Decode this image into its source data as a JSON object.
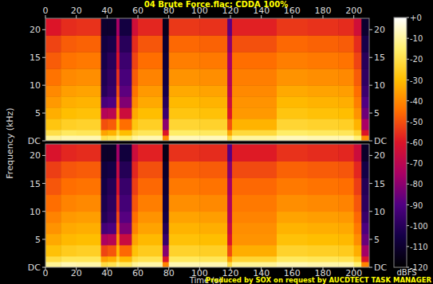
{
  "chart_data": {
    "type": "heatmap",
    "title": "04 Brute Force.flac: CDDA 100%",
    "x_label": "Time (s)",
    "y_label": "Frequency (kHz)",
    "caption": "Produced by SOX on request by AUCDTECT TASK MANAGER",
    "xlim": [
      0,
      210
    ],
    "xticks": [
      0,
      20,
      40,
      60,
      80,
      100,
      120,
      140,
      160,
      180,
      200
    ],
    "ylim": [
      0,
      22.05
    ],
    "yticks": [
      {
        "value": 0,
        "label": "DC"
      },
      5,
      10,
      15,
      20
    ],
    "x_edges": [
      0,
      10,
      20,
      36,
      40,
      46,
      48,
      56,
      60,
      76,
      80,
      100,
      118,
      121,
      150,
      170,
      190,
      200,
      205,
      210
    ],
    "y_edges": [
      0,
      1,
      2,
      4,
      6,
      8,
      10,
      13,
      16,
      19,
      22.05
    ],
    "cells": [
      [
        [
          -10,
          -20,
          -28,
          -33,
          -37,
          -40,
          -44,
          -48,
          -52,
          -60
        ],
        [
          -8,
          -17,
          -25,
          -30,
          -33,
          -36,
          -40,
          -44,
          -48,
          -56
        ],
        [
          -8,
          -18,
          -24,
          -29,
          -32,
          -35,
          -39,
          -43,
          -47,
          -55
        ],
        [
          -20,
          -35,
          -50,
          -72,
          -92,
          -100,
          -102,
          -104,
          -106,
          -110
        ],
        [
          -18,
          -32,
          -48,
          -70,
          -90,
          -96,
          -98,
          -100,
          -104,
          -110
        ],
        [
          -12,
          -22,
          -30,
          -38,
          -45,
          -50,
          -55,
          -60,
          -66,
          -75
        ],
        [
          -16,
          -30,
          -45,
          -65,
          -82,
          -88,
          -92,
          -95,
          -100,
          -106
        ],
        [
          -10,
          -20,
          -28,
          -34,
          -40,
          -44,
          -48,
          -52,
          -56,
          -64
        ],
        [
          -8,
          -18,
          -25,
          -30,
          -34,
          -37,
          -41,
          -45,
          -49,
          -57
        ],
        [
          -40,
          -60,
          -80,
          -95,
          -100,
          -104,
          -106,
          -108,
          -110,
          -114
        ],
        [
          -7,
          -16,
          -23,
          -28,
          -31,
          -34,
          -38,
          -42,
          -46,
          -54
        ],
        [
          -7,
          -17,
          -24,
          -29,
          -32,
          -35,
          -39,
          -43,
          -47,
          -55
        ],
        [
          -20,
          -35,
          -50,
          -60,
          -65,
          -70,
          -72,
          -75,
          -80,
          -88
        ],
        [
          -10,
          -22,
          -32,
          -37,
          -38,
          -40,
          -42,
          -45,
          -50,
          -58
        ],
        [
          -7,
          -16,
          -23,
          -28,
          -31,
          -34,
          -38,
          -42,
          -46,
          -54
        ],
        [
          -8,
          -17,
          -24,
          -29,
          -32,
          -35,
          -39,
          -43,
          -47,
          -55
        ],
        [
          -8,
          -18,
          -25,
          -30,
          -33,
          -36,
          -40,
          -44,
          -48,
          -56
        ],
        [
          -14,
          -24,
          -32,
          -38,
          -42,
          -45,
          -48,
          -52,
          -56,
          -64
        ],
        [
          -40,
          -60,
          -75,
          -85,
          -90,
          -95,
          -98,
          -100,
          -104,
          -110
        ]
      ],
      [
        [
          -11,
          -21,
          -29,
          -34,
          -38,
          -41,
          -45,
          -49,
          -53,
          -61
        ],
        [
          -8,
          -18,
          -26,
          -31,
          -34,
          -37,
          -41,
          -45,
          -49,
          -57
        ],
        [
          -9,
          -18,
          -25,
          -30,
          -33,
          -36,
          -40,
          -44,
          -48,
          -56
        ],
        [
          -21,
          -36,
          -52,
          -74,
          -93,
          -101,
          -103,
          -105,
          -107,
          -111
        ],
        [
          -19,
          -33,
          -49,
          -71,
          -91,
          -97,
          -99,
          -101,
          -105,
          -111
        ],
        [
          -13,
          -23,
          -31,
          -39,
          -46,
          -51,
          -56,
          -61,
          -67,
          -76
        ],
        [
          -17,
          -31,
          -46,
          -66,
          -83,
          -89,
          -93,
          -96,
          -101,
          -107
        ],
        [
          -11,
          -21,
          -29,
          -35,
          -41,
          -45,
          -49,
          -53,
          -57,
          -65
        ],
        [
          -9,
          -19,
          -26,
          -31,
          -35,
          -38,
          -42,
          -46,
          -50,
          -58
        ],
        [
          -41,
          -61,
          -81,
          -96,
          -101,
          -105,
          -107,
          -109,
          -111,
          -115
        ],
        [
          -8,
          -17,
          -24,
          -29,
          -32,
          -35,
          -39,
          -43,
          -47,
          -55
        ],
        [
          -8,
          -18,
          -25,
          -30,
          -33,
          -36,
          -40,
          -44,
          -48,
          -56
        ],
        [
          -21,
          -36,
          -51,
          -61,
          -66,
          -71,
          -73,
          -76,
          -81,
          -89
        ],
        [
          -11,
          -23,
          -33,
          -38,
          -39,
          -41,
          -43,
          -46,
          -51,
          -59
        ],
        [
          -8,
          -17,
          -24,
          -29,
          -32,
          -35,
          -39,
          -43,
          -47,
          -55
        ],
        [
          -9,
          -18,
          -25,
          -30,
          -33,
          -36,
          -40,
          -44,
          -48,
          -56
        ],
        [
          -9,
          -19,
          -26,
          -31,
          -34,
          -37,
          -41,
          -45,
          -49,
          -57
        ],
        [
          -15,
          -25,
          -33,
          -39,
          -43,
          -46,
          -49,
          -53,
          -57,
          -65
        ],
        [
          -41,
          -61,
          -76,
          -86,
          -91,
          -96,
          -99,
          -101,
          -105,
          -111
        ]
      ]
    ],
    "colorbar": {
      "label": "dBFS",
      "range": [
        -120,
        0
      ],
      "ticks": [
        {
          "value": 0,
          "label": "+0"
        },
        -10,
        -20,
        -30,
        -40,
        -50,
        -60,
        -70,
        -80,
        -90,
        -100,
        -110,
        -120
      ]
    }
  }
}
